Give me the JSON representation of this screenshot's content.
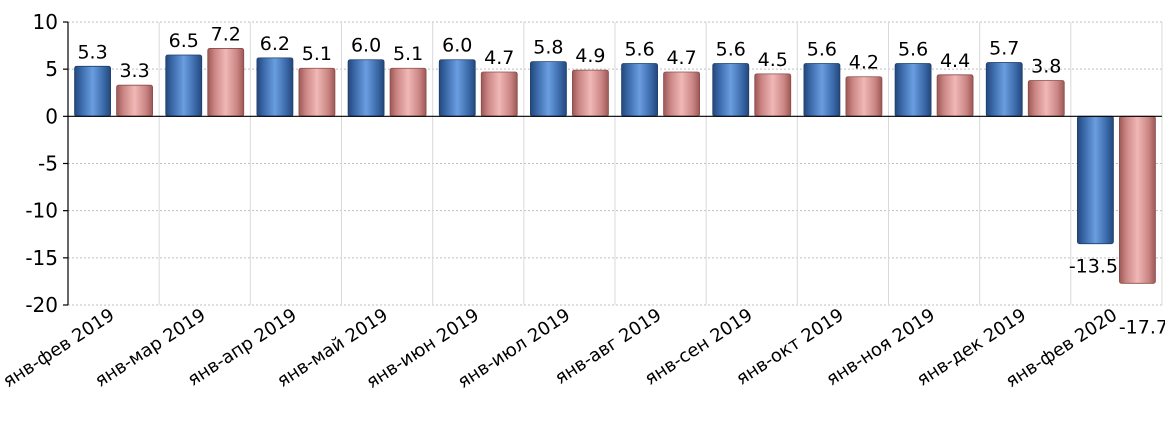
{
  "chart_data": {
    "type": "bar",
    "categories": [
      "янв-фев 2019",
      "янв-мар 2019",
      "янв-апр 2019",
      "янв-май 2019",
      "янв-июн 2019",
      "янв-июл 2019",
      "янв-авг 2019",
      "янв-сен 2019",
      "янв-окт 2019",
      "янв-ноя 2019",
      "янв-дек 2019",
      "янв-фев 2020"
    ],
    "series": [
      {
        "values": [
          5.3,
          6.5,
          6.2,
          6.0,
          6.0,
          5.8,
          5.6,
          5.6,
          5.6,
          5.6,
          5.7,
          -13.5
        ],
        "color": "#4a7ec4"
      },
      {
        "values": [
          3.3,
          7.2,
          5.1,
          5.1,
          4.7,
          4.9,
          4.7,
          4.5,
          4.2,
          4.4,
          3.8,
          -17.7
        ],
        "color": "#d99694"
      }
    ],
    "data_labels": [
      [
        "5.3",
        "6.5",
        "6.2",
        "6.0",
        "6.0",
        "5.8",
        "5.6",
        "5.6",
        "5.6",
        "5.6",
        "5.7",
        "-13.5"
      ],
      [
        "3.3",
        "7.2",
        "5.1",
        "5.1",
        "4.7",
        "4.9",
        "4.7",
        "4.5",
        "4.2",
        "4.4",
        "3.8",
        "-17.7"
      ]
    ],
    "yticks": [
      10,
      5,
      0,
      -5,
      -10,
      -15,
      -20
    ],
    "ytick_labels": [
      "10",
      "5",
      "0",
      "-5",
      "-10",
      "-15",
      "-20"
    ],
    "ylim": [
      -20,
      10
    ],
    "title": "",
    "xlabel": "",
    "ylabel": "",
    "grid": "horizontal dashed and vertical category separators",
    "legend": "none"
  }
}
